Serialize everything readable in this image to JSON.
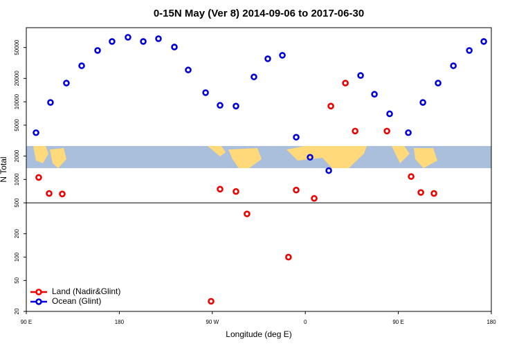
{
  "chart_data": {
    "type": "scatter",
    "title": "0-15N May (Ver 8)   2014-09-06 to 2017-06-30",
    "xlabel": "Longitude (deg E)",
    "ylabel": "N Total",
    "log_y": true,
    "legend": "lower left",
    "reference_line": 500,
    "xlim": [
      90,
      540
    ],
    "xticks": [
      {
        "value": 90,
        "label": "90 E"
      },
      180,
      {
        "value": 270,
        "label": "90 W"
      },
      {
        "value": 360,
        "label": "0"
      },
      {
        "value": 450,
        "label": "90 E"
      },
      {
        "value": 540,
        "label": "180"
      }
    ],
    "ylim": [
      20,
      90000
    ],
    "yticks": [
      20,
      50,
      100,
      200,
      500,
      1000,
      2000,
      5000,
      10000,
      20000,
      50000
    ],
    "series": [
      {
        "name": "Land (Nadir&Glint)",
        "color": "#ee0000",
        "x": [
          102,
          112.1,
          124.8,
          268.8,
          277.5,
          292.9,
          303.6,
          343.7,
          351.2,
          368.6,
          384.7,
          398.8,
          408.2,
          439,
          462.4,
          471.8,
          484.5
        ],
        "values": [
          1060,
          660,
          650,
          27,
          750,
          700,
          360,
          100,
          730,
          570,
          8800,
          17400,
          4200,
          4200,
          1090,
          680,
          660
        ]
      },
      {
        "name": "Ocean (Glint)",
        "color": "#0000dd",
        "x": [
          99.4,
          113.4,
          128.8,
          143.6,
          159,
          173,
          188.4,
          203.2,
          217.9,
          233.3,
          246.7,
          263.5,
          277.5,
          292.9,
          310.3,
          323.7,
          337.8,
          351.2,
          364.6,
          382.7,
          413.5,
          426.9,
          441.6,
          459.7,
          473.8,
          488.5,
          503.3,
          518.7,
          532.7
        ],
        "values": [
          4000,
          9800,
          17400,
          29100,
          45800,
          59800,
          67700,
          59800,
          64900,
          50700,
          25700,
          13100,
          9000,
          8800,
          20900,
          35800,
          39700,
          3500,
          1930,
          1300,
          21800,
          12500,
          7000,
          4000,
          9800,
          17400,
          29100,
          45800,
          59800
        ]
      }
    ]
  }
}
